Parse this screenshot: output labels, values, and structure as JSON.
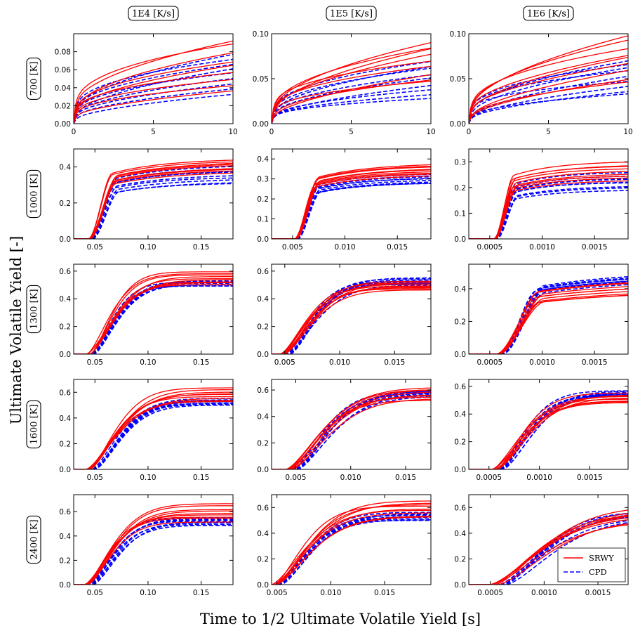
{
  "figure": {
    "xlabel": "Time to 1/2 Ultimate Volatile Yield [s]",
    "ylabel": "Ultimate Volatile Yield [-]",
    "col_headers": [
      "1E4 [K/s]",
      "1E5 [K/s]",
      "1E6 [K/s]"
    ],
    "row_headers": [
      "700 [K]",
      "1000 [K]",
      "1300 [K]",
      "1600 [K]",
      "2400 [K]"
    ],
    "legend": [
      "SRWY",
      "CPD"
    ],
    "colors": {
      "SRWY": "#ff0000",
      "CPD": "#0000ff"
    }
  },
  "chart_data": [
    {
      "type": "line",
      "row": "700 [K]",
      "col": "1E4 [K/s]",
      "xlim": [
        0,
        10
      ],
      "ylim": [
        0,
        0.1
      ],
      "xticks": [
        0,
        5,
        10
      ],
      "xtick_labels": [
        "0",
        "5",
        "10"
      ],
      "yticks": [
        0,
        0.02,
        0.04,
        0.06,
        0.08
      ],
      "ytick_labels": [
        "0.00",
        "0.02",
        "0.04",
        "0.06",
        "0.08"
      ],
      "curve_model": "slow",
      "srwy_range": [
        0.036,
        0.093
      ],
      "cpd_range": [
        0.035,
        0.075
      ]
    },
    {
      "type": "line",
      "row": "700 [K]",
      "col": "1E5 [K/s]",
      "xlim": [
        0,
        10
      ],
      "ylim": [
        0,
        0.1
      ],
      "xticks": [
        0,
        5,
        10
      ],
      "xtick_labels": [
        "0",
        "5",
        "10"
      ],
      "yticks": [
        0,
        0.05,
        0.1
      ],
      "ytick_labels": [
        "0.00",
        "0.05",
        "0.10"
      ],
      "curve_model": "slow",
      "srwy_range": [
        0.045,
        0.093
      ],
      "cpd_range": [
        0.028,
        0.07
      ]
    },
    {
      "type": "line",
      "row": "700 [K]",
      "col": "1E6 [K/s]",
      "xlim": [
        0,
        10
      ],
      "ylim": [
        0,
        0.1
      ],
      "xticks": [
        0,
        5,
        10
      ],
      "xtick_labels": [
        "0",
        "5",
        "10"
      ],
      "yticks": [
        0,
        0.05,
        0.1
      ],
      "ytick_labels": [
        "0.00",
        "0.05",
        "0.10"
      ],
      "curve_model": "slow",
      "srwy_range": [
        0.045,
        0.097
      ],
      "cpd_range": [
        0.032,
        0.072
      ]
    },
    {
      "type": "line",
      "row": "1000 [K]",
      "col": "1E4 [K/s]",
      "xlim": [
        0.03,
        0.18
      ],
      "ylim": [
        0,
        0.5
      ],
      "xticks": [
        0.05,
        0.1,
        0.15
      ],
      "xtick_labels": [
        "0.05",
        "0.10",
        "0.15"
      ],
      "yticks": [
        0,
        0.2,
        0.4
      ],
      "ytick_labels": [
        "0.0",
        "0.2",
        "0.4"
      ],
      "curve_model": "knee",
      "onset": 0.045,
      "knee": 0.07,
      "slope": 0.3,
      "srwy_range": [
        0.38,
        0.45
      ],
      "cpd_range": [
        0.31,
        0.41
      ]
    },
    {
      "type": "line",
      "row": "1000 [K]",
      "col": "1E5 [K/s]",
      "xlim": [
        0.003,
        0.0182
      ],
      "ylim": [
        0,
        0.45
      ],
      "xticks": [
        0.005,
        0.01,
        0.015
      ],
      "xtick_labels": [
        "0.005",
        "0.010",
        "0.015"
      ],
      "yticks": [
        0,
        0.1,
        0.2,
        0.3,
        0.4
      ],
      "ytick_labels": [
        "0.0",
        "0.1",
        "0.2",
        "0.3",
        "0.4"
      ],
      "curve_model": "knee",
      "onset": 0.0053,
      "knee": 0.0075,
      "slope": 0.3,
      "srwy_range": [
        0.32,
        0.38
      ],
      "cpd_range": [
        0.28,
        0.33
      ]
    },
    {
      "type": "line",
      "row": "1000 [K]",
      "col": "1E6 [K/s]",
      "xlim": [
        0.0003,
        0.00182
      ],
      "ylim": [
        0,
        0.35
      ],
      "xticks": [
        0.0005,
        0.001,
        0.0015
      ],
      "xtick_labels": [
        "0.0005",
        "0.0010",
        "0.0015"
      ],
      "yticks": [
        0,
        0.1,
        0.2,
        0.3
      ],
      "ytick_labels": [
        "0.0",
        "0.1",
        "0.2",
        "0.3"
      ],
      "curve_model": "knee",
      "onset": 0.00055,
      "knee": 0.00075,
      "slope": 0.55,
      "srwy_range": [
        0.23,
        0.3
      ],
      "cpd_range": [
        0.19,
        0.26
      ]
    },
    {
      "type": "line",
      "row": "1300 [K]",
      "col": "1E4 [K/s]",
      "xlim": [
        0.03,
        0.18
      ],
      "ylim": [
        0,
        0.65
      ],
      "xticks": [
        0.05,
        0.1,
        0.15
      ],
      "xtick_labels": [
        "0.05",
        "0.10",
        "0.15"
      ],
      "yticks": [
        0,
        0.2,
        0.4,
        0.6
      ],
      "ytick_labels": [
        "0.0",
        "0.2",
        "0.4",
        "0.6"
      ],
      "curve_model": "smooth",
      "onset": 0.045,
      "knee": 0.1,
      "srwy_range": [
        0.5,
        0.59
      ],
      "cpd_range": [
        0.49,
        0.53
      ]
    },
    {
      "type": "line",
      "row": "1300 [K]",
      "col": "1E5 [K/s]",
      "xlim": [
        0.0038,
        0.0183
      ],
      "ylim": [
        0,
        0.65
      ],
      "xticks": [
        0.005,
        0.01,
        0.015
      ],
      "xtick_labels": [
        "0.005",
        "0.010",
        "0.015"
      ],
      "yticks": [
        0,
        0.2,
        0.4,
        0.6
      ],
      "ytick_labels": [
        "0.0",
        "0.2",
        "0.4",
        "0.6"
      ],
      "curve_model": "smooth",
      "onset": 0.0049,
      "knee": 0.011,
      "srwy_range": [
        0.46,
        0.53
      ],
      "cpd_range": [
        0.5,
        0.55
      ]
    },
    {
      "type": "line",
      "row": "1300 [K]",
      "col": "1E6 [K/s]",
      "xlim": [
        0.0003,
        0.00182
      ],
      "ylim": [
        0,
        0.55
      ],
      "xticks": [
        0.0005,
        0.001,
        0.0015
      ],
      "xtick_labels": [
        "0.0005",
        "0.0010",
        "0.0015"
      ],
      "yticks": [
        0,
        0.2,
        0.4
      ],
      "ytick_labels": [
        "0.0",
        "0.2",
        "0.4"
      ],
      "curve_model": "knee",
      "onset": 0.00058,
      "knee": 0.001,
      "slope": 0.15,
      "srwy_range": [
        0.38,
        0.47
      ],
      "cpd_range": [
        0.46,
        0.51
      ]
    },
    {
      "type": "line",
      "row": "1600 [K]",
      "col": "1E4 [K/s]",
      "xlim": [
        0.03,
        0.18
      ],
      "ylim": [
        0,
        0.7
      ],
      "xticks": [
        0.05,
        0.1,
        0.15
      ],
      "xtick_labels": [
        "0.05",
        "0.10",
        "0.15"
      ],
      "yticks": [
        0,
        0.2,
        0.4,
        0.6
      ],
      "ytick_labels": [
        "0.0",
        "0.2",
        "0.4",
        "0.6"
      ],
      "curve_model": "smooth",
      "onset": 0.045,
      "knee": 0.11,
      "srwy_range": [
        0.53,
        0.63
      ],
      "cpd_range": [
        0.5,
        0.55
      ]
    },
    {
      "type": "line",
      "row": "1600 [K]",
      "col": "1E5 [K/s]",
      "xlim": [
        0.0028,
        0.0173
      ],
      "ylim": [
        0,
        0.68
      ],
      "xticks": [
        0.005,
        0.01,
        0.015
      ],
      "xtick_labels": [
        "0.005",
        "0.010",
        "0.015"
      ],
      "yticks": [
        0,
        0.2,
        0.4,
        0.6
      ],
      "ytick_labels": [
        "0.0",
        "0.2",
        "0.4",
        "0.6"
      ],
      "curve_model": "smooth",
      "onset": 0.0045,
      "knee": 0.012,
      "srwy_range": [
        0.52,
        0.62
      ],
      "cpd_range": [
        0.55,
        0.59
      ]
    },
    {
      "type": "line",
      "row": "1600 [K]",
      "col": "1E6 [K/s]",
      "xlim": [
        0.0003,
        0.00188
      ],
      "ylim": [
        0,
        0.65
      ],
      "xticks": [
        0.0005,
        0.001,
        0.0015
      ],
      "xtick_labels": [
        "0.0005",
        "0.0010",
        "0.0015"
      ],
      "yticks": [
        0,
        0.2,
        0.4,
        0.6
      ],
      "ytick_labels": [
        "0.0",
        "0.2",
        "0.4",
        "0.6"
      ],
      "curve_model": "smooth",
      "onset": 0.00057,
      "knee": 0.0013,
      "srwy_range": [
        0.48,
        0.55
      ],
      "cpd_range": [
        0.53,
        0.57
      ]
    },
    {
      "type": "line",
      "row": "2400 [K]",
      "col": "1E4 [K/s]",
      "xlim": [
        0.03,
        0.18
      ],
      "ylim": [
        0,
        0.74
      ],
      "xticks": [
        0.05,
        0.1,
        0.15
      ],
      "xtick_labels": [
        "0.05",
        "0.10",
        "0.15"
      ],
      "yticks": [
        0,
        0.2,
        0.4,
        0.6
      ],
      "ytick_labels": [
        "0.0",
        "0.2",
        "0.4",
        "0.6"
      ],
      "curve_model": "smooth",
      "onset": 0.043,
      "knee": 0.1,
      "srwy_range": [
        0.52,
        0.66
      ],
      "cpd_range": [
        0.49,
        0.55
      ]
    },
    {
      "type": "line",
      "row": "2400 [K]",
      "col": "1E5 [K/s]",
      "xlim": [
        0.0045,
        0.0193
      ],
      "ylim": [
        0,
        0.7
      ],
      "xticks": [
        0.005,
        0.01,
        0.015
      ],
      "xtick_labels": [
        "0.005",
        "0.010",
        "0.015"
      ],
      "yticks": [
        0,
        0.2,
        0.4,
        0.6
      ],
      "ytick_labels": [
        "0.0",
        "0.2",
        "0.4",
        "0.6"
      ],
      "curve_model": "smooth",
      "onset": 0.0048,
      "knee": 0.012,
      "srwy_range": [
        0.52,
        0.66
      ],
      "cpd_range": [
        0.5,
        0.56
      ]
    },
    {
      "type": "line",
      "row": "2400 [K]",
      "col": "1E6 [K/s]",
      "xlim": [
        0.0003,
        0.00178
      ],
      "ylim": [
        0,
        0.7
      ],
      "xticks": [
        0.0005,
        0.001,
        0.0015
      ],
      "xtick_labels": [
        "0.0005",
        "0.0010",
        "0.0015"
      ],
      "yticks": [
        0,
        0.2,
        0.4,
        0.6
      ],
      "ytick_labels": [
        "0.0",
        "0.2",
        "0.4",
        "0.6"
      ],
      "curve_model": "smooth",
      "onset": 0.00055,
      "knee": 0.0016,
      "srwy_range": [
        0.5,
        0.61
      ],
      "cpd_range": [
        0.52,
        0.58
      ]
    }
  ]
}
